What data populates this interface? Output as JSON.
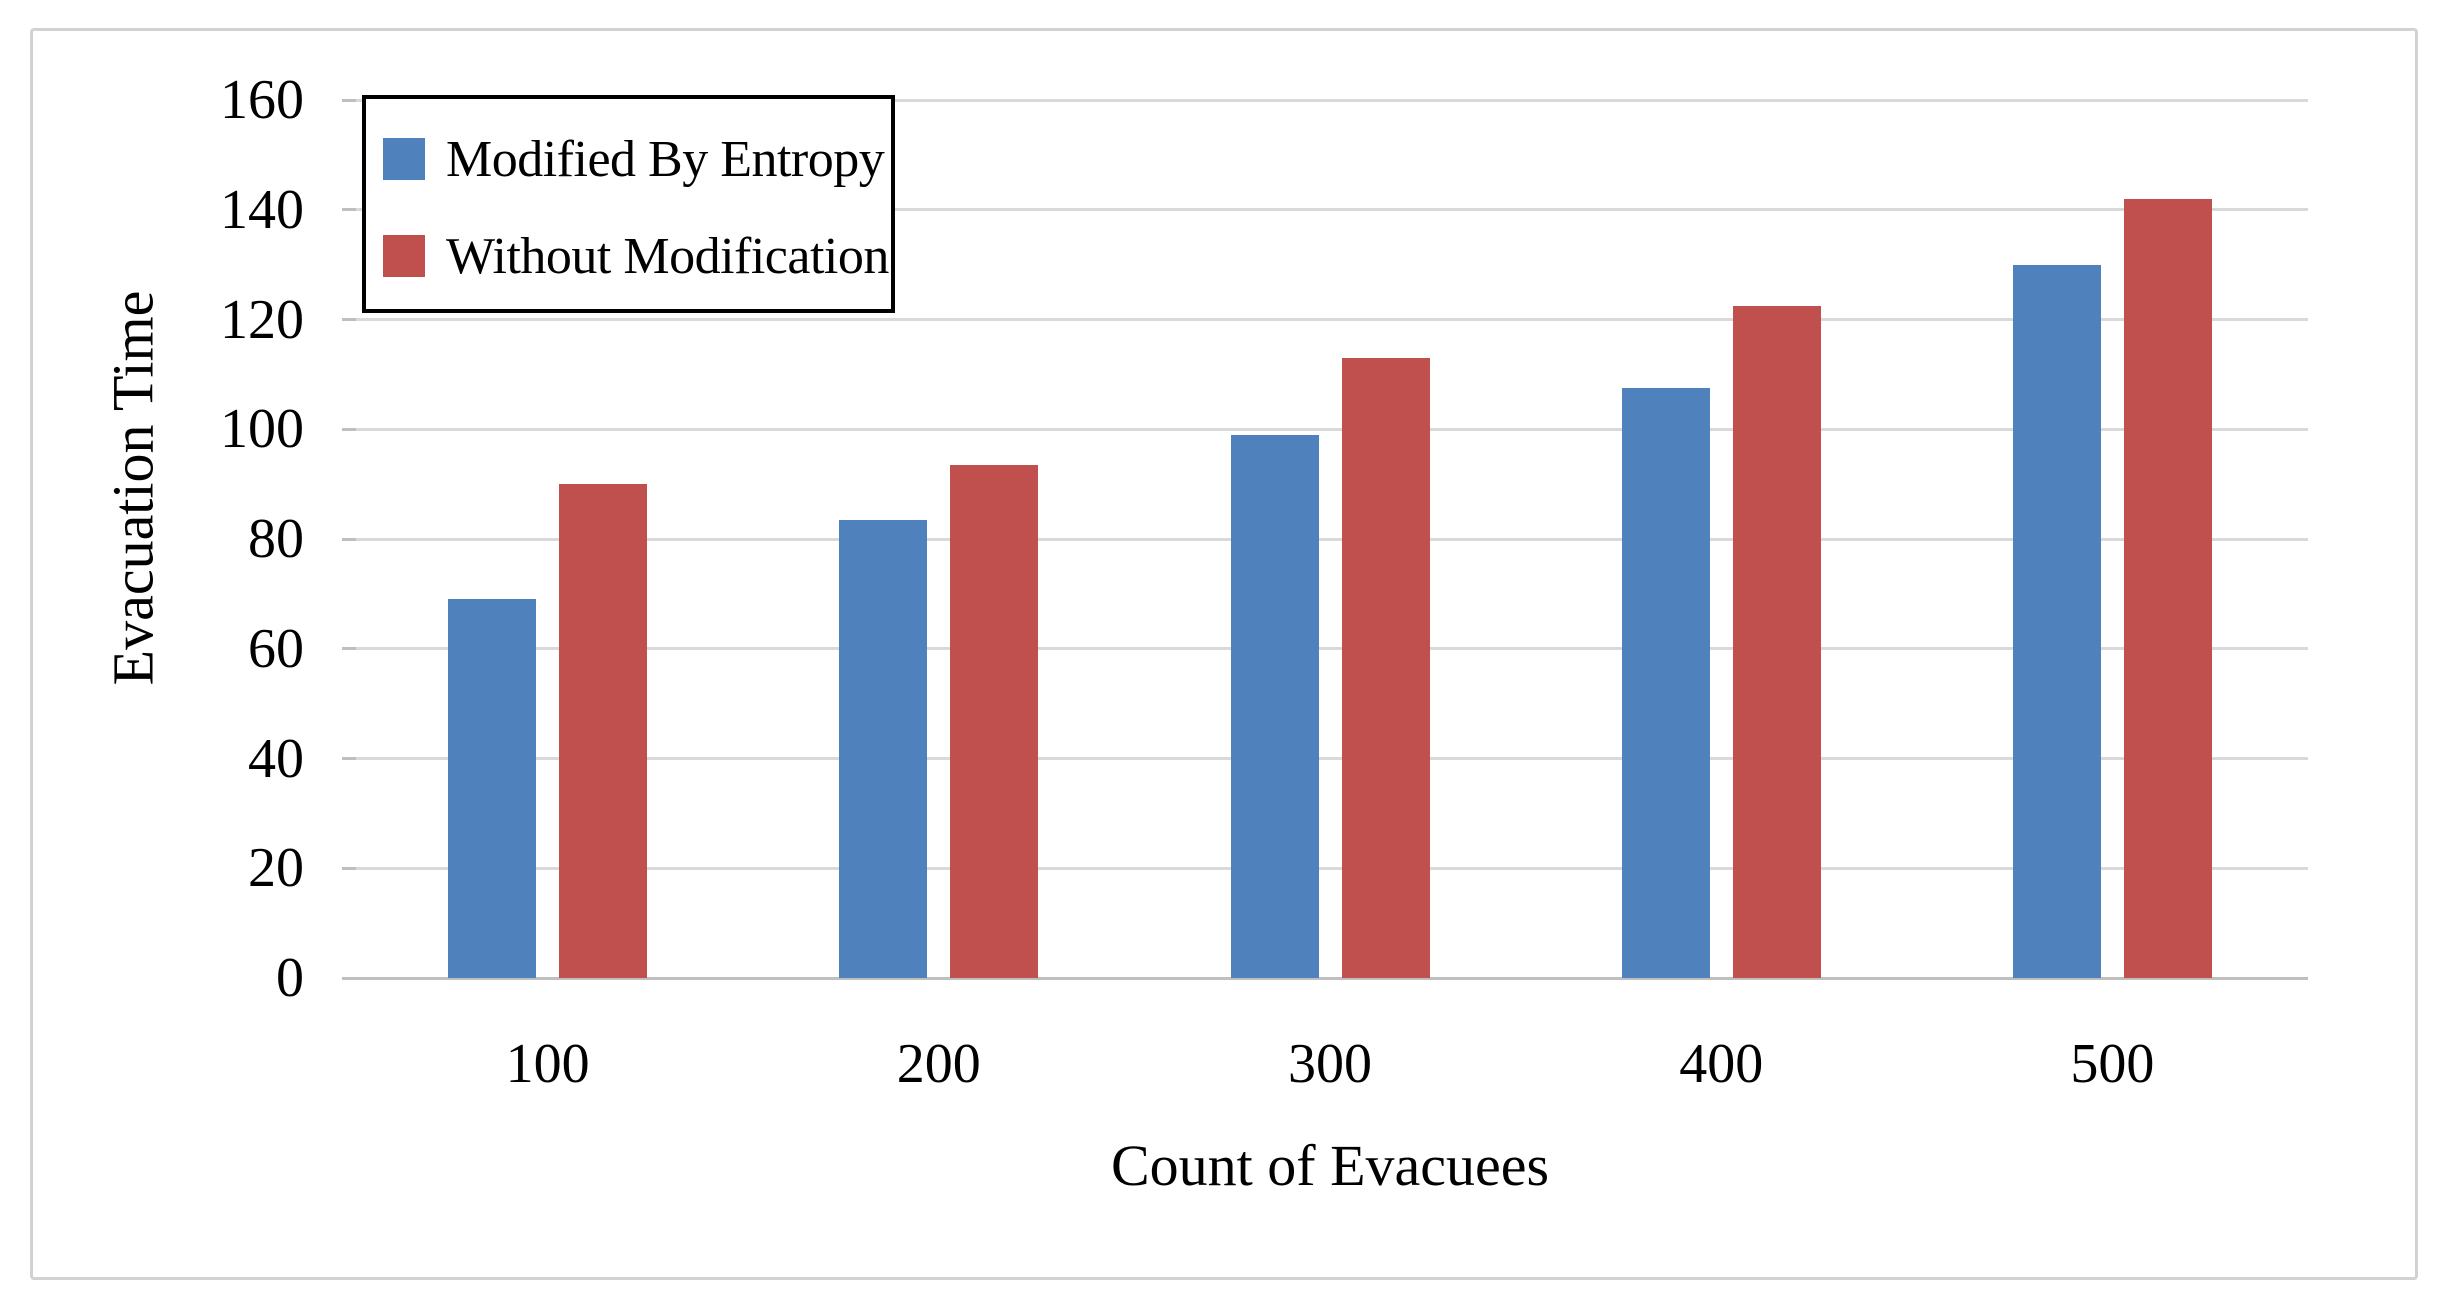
{
  "chart_data": {
    "type": "bar",
    "title": "",
    "xlabel": "Count of Evacuees",
    "ylabel": "Evacuation Time",
    "categories": [
      "100",
      "200",
      "300",
      "400",
      "500"
    ],
    "series": [
      {
        "name": "Modified By Entropy",
        "color": "#4F81BD",
        "values": [
          69,
          83.5,
          99,
          107.5,
          130
        ]
      },
      {
        "name": "Without Modification",
        "color": "#C0504D",
        "values": [
          90,
          93.5,
          113,
          122.5,
          142
        ]
      }
    ],
    "ylim": [
      0,
      160
    ],
    "ytick_step": 20,
    "yticks": [
      0,
      20,
      40,
      60,
      80,
      100,
      120,
      140,
      160
    ],
    "grid": true,
    "legend_position": "top-left",
    "colors": {
      "gridline": "#D9D9D9",
      "axis_line": "#BFBFBF",
      "text": "#000000",
      "legend_border": "#000000",
      "frame_border": "#D2D2D2",
      "background": "#FFFFFF"
    }
  }
}
